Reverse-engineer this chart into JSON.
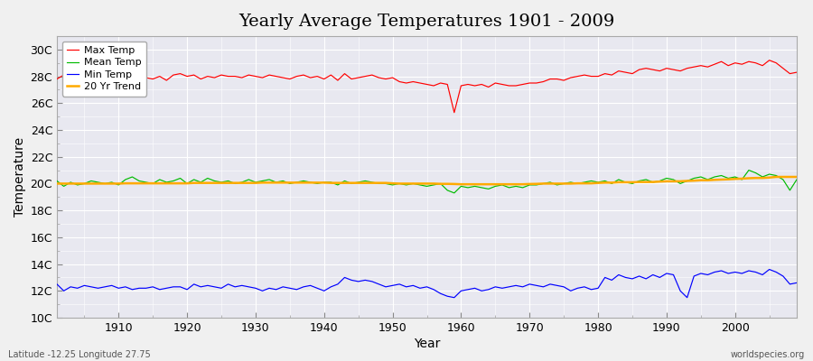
{
  "title": "Yearly Average Temperatures 1901 - 2009",
  "xlabel": "Year",
  "ylabel": "Temperature",
  "subtitle_left": "Latitude -12.25 Longitude 27.75",
  "subtitle_right": "worldspecies.org",
  "ylim": [
    10,
    31
  ],
  "yticks": [
    10,
    12,
    14,
    16,
    18,
    20,
    22,
    24,
    26,
    28,
    30
  ],
  "ytick_labels": [
    "10C",
    "12C",
    "14C",
    "16C",
    "18C",
    "20C",
    "22C",
    "24C",
    "26C",
    "28C",
    "30C"
  ],
  "xlim": [
    1901,
    2009
  ],
  "xticks": [
    1910,
    1920,
    1930,
    1940,
    1950,
    1960,
    1970,
    1980,
    1990,
    2000
  ],
  "legend_labels": [
    "Max Temp",
    "Mean Temp",
    "Min Temp",
    "20 Yr Trend"
  ],
  "line_colors": [
    "#ff0000",
    "#00bb00",
    "#0000ff",
    "#ffaa00"
  ],
  "fig_bg_color": "#f0f0f0",
  "plot_bg_color": "#e8e8f0",
  "grid_color": "#ffffff",
  "title_fontsize": 14,
  "axis_fontsize": 9,
  "years": [
    1901,
    1902,
    1903,
    1904,
    1905,
    1906,
    1907,
    1908,
    1909,
    1910,
    1911,
    1912,
    1913,
    1914,
    1915,
    1916,
    1917,
    1918,
    1919,
    1920,
    1921,
    1922,
    1923,
    1924,
    1925,
    1926,
    1927,
    1928,
    1929,
    1930,
    1931,
    1932,
    1933,
    1934,
    1935,
    1936,
    1937,
    1938,
    1939,
    1940,
    1941,
    1942,
    1943,
    1944,
    1945,
    1946,
    1947,
    1948,
    1949,
    1950,
    1951,
    1952,
    1953,
    1954,
    1955,
    1956,
    1957,
    1958,
    1959,
    1960,
    1961,
    1962,
    1963,
    1964,
    1965,
    1966,
    1967,
    1968,
    1969,
    1970,
    1971,
    1972,
    1973,
    1974,
    1975,
    1976,
    1977,
    1978,
    1979,
    1980,
    1981,
    1982,
    1983,
    1984,
    1985,
    1986,
    1987,
    1988,
    1989,
    1990,
    1991,
    1992,
    1993,
    1994,
    1995,
    1996,
    1997,
    1998,
    1999,
    2000,
    2001,
    2002,
    2003,
    2004,
    2005,
    2006,
    2007,
    2008,
    2009
  ],
  "max_temp": [
    27.8,
    28.1,
    28.2,
    27.9,
    28.0,
    27.9,
    27.9,
    28.0,
    28.0,
    27.7,
    28.1,
    28.3,
    27.8,
    27.9,
    27.8,
    28.0,
    27.7,
    28.1,
    28.2,
    28.0,
    28.1,
    27.8,
    28.0,
    27.9,
    28.1,
    28.0,
    28.0,
    27.9,
    28.1,
    28.0,
    27.9,
    28.1,
    28.0,
    27.9,
    27.8,
    28.0,
    28.1,
    27.9,
    28.0,
    27.8,
    28.1,
    27.7,
    28.2,
    27.8,
    27.9,
    28.0,
    28.1,
    27.9,
    27.8,
    27.9,
    27.6,
    27.5,
    27.6,
    27.5,
    27.4,
    27.3,
    27.5,
    27.4,
    25.3,
    27.3,
    27.4,
    27.3,
    27.4,
    27.2,
    27.5,
    27.4,
    27.3,
    27.3,
    27.4,
    27.5,
    27.5,
    27.6,
    27.8,
    27.8,
    27.7,
    27.9,
    28.0,
    28.1,
    28.0,
    28.0,
    28.2,
    28.1,
    28.4,
    28.3,
    28.2,
    28.5,
    28.6,
    28.5,
    28.4,
    28.6,
    28.5,
    28.4,
    28.6,
    28.7,
    28.8,
    28.7,
    28.9,
    29.1,
    28.8,
    29.0,
    28.9,
    29.1,
    29.0,
    28.8,
    29.2,
    29.0,
    28.6,
    28.2,
    28.3
  ],
  "mean_temp": [
    20.2,
    19.8,
    20.1,
    19.9,
    20.0,
    20.2,
    20.1,
    20.0,
    20.1,
    19.9,
    20.3,
    20.5,
    20.2,
    20.1,
    20.0,
    20.3,
    20.1,
    20.2,
    20.4,
    20.0,
    20.3,
    20.1,
    20.4,
    20.2,
    20.1,
    20.2,
    20.0,
    20.1,
    20.3,
    20.1,
    20.2,
    20.3,
    20.1,
    20.2,
    20.0,
    20.1,
    20.2,
    20.1,
    20.0,
    20.1,
    20.1,
    19.9,
    20.2,
    20.0,
    20.1,
    20.2,
    20.1,
    20.0,
    20.0,
    19.9,
    20.0,
    19.9,
    20.0,
    19.9,
    19.8,
    19.9,
    20.0,
    19.5,
    19.3,
    19.8,
    19.7,
    19.8,
    19.7,
    19.6,
    19.8,
    19.9,
    19.7,
    19.8,
    19.7,
    19.9,
    19.9,
    20.0,
    20.1,
    19.9,
    20.0,
    20.1,
    20.0,
    20.1,
    20.2,
    20.1,
    20.2,
    20.0,
    20.3,
    20.1,
    20.0,
    20.2,
    20.3,
    20.1,
    20.2,
    20.4,
    20.3,
    20.0,
    20.2,
    20.4,
    20.5,
    20.3,
    20.5,
    20.6,
    20.4,
    20.5,
    20.3,
    21.0,
    20.8,
    20.5,
    20.7,
    20.6,
    20.3,
    19.5,
    20.3
  ],
  "min_temp": [
    12.5,
    12.0,
    12.3,
    12.2,
    12.4,
    12.3,
    12.2,
    12.3,
    12.4,
    12.2,
    12.3,
    12.1,
    12.2,
    12.2,
    12.3,
    12.1,
    12.2,
    12.3,
    12.3,
    12.1,
    12.5,
    12.3,
    12.4,
    12.3,
    12.2,
    12.5,
    12.3,
    12.4,
    12.3,
    12.2,
    12.0,
    12.2,
    12.1,
    12.3,
    12.2,
    12.1,
    12.3,
    12.4,
    12.2,
    12.0,
    12.3,
    12.5,
    13.0,
    12.8,
    12.7,
    12.8,
    12.7,
    12.5,
    12.3,
    12.4,
    12.5,
    12.3,
    12.4,
    12.2,
    12.3,
    12.1,
    11.8,
    11.6,
    11.5,
    12.0,
    12.1,
    12.2,
    12.0,
    12.1,
    12.3,
    12.2,
    12.3,
    12.4,
    12.3,
    12.5,
    12.4,
    12.3,
    12.5,
    12.4,
    12.3,
    12.0,
    12.2,
    12.3,
    12.1,
    12.2,
    13.0,
    12.8,
    13.2,
    13.0,
    12.9,
    13.1,
    12.9,
    13.2,
    13.0,
    13.3,
    13.2,
    12.0,
    11.5,
    13.1,
    13.3,
    13.2,
    13.4,
    13.5,
    13.3,
    13.4,
    13.3,
    13.5,
    13.4,
    13.2,
    13.6,
    13.4,
    13.1,
    12.5,
    12.6
  ],
  "trend": [
    20.0,
    20.0,
    20.0,
    20.0,
    20.0,
    20.0,
    20.0,
    20.0,
    20.0,
    20.0,
    20.02,
    20.02,
    20.02,
    20.02,
    20.02,
    20.02,
    20.02,
    20.02,
    20.02,
    20.02,
    20.05,
    20.05,
    20.05,
    20.05,
    20.05,
    20.05,
    20.05,
    20.05,
    20.05,
    20.05,
    20.07,
    20.07,
    20.07,
    20.07,
    20.07,
    20.07,
    20.07,
    20.07,
    20.07,
    20.07,
    20.05,
    20.05,
    20.05,
    20.05,
    20.05,
    20.05,
    20.05,
    20.05,
    20.05,
    20.02,
    20.0,
    20.0,
    20.0,
    20.0,
    20.0,
    20.0,
    19.98,
    19.98,
    19.97,
    19.95,
    19.95,
    19.95,
    19.95,
    19.95,
    19.95,
    19.95,
    19.95,
    19.95,
    19.95,
    19.97,
    19.98,
    20.0,
    20.0,
    20.0,
    20.0,
    20.0,
    20.02,
    20.02,
    20.02,
    20.05,
    20.07,
    20.07,
    20.1,
    20.1,
    20.1,
    20.12,
    20.12,
    20.12,
    20.15,
    20.17,
    20.17,
    20.17,
    20.2,
    20.22,
    20.25,
    20.25,
    20.28,
    20.3,
    20.32,
    20.35,
    20.37,
    20.4,
    20.42,
    20.42,
    20.45,
    20.5,
    20.5,
    20.5,
    20.5
  ]
}
